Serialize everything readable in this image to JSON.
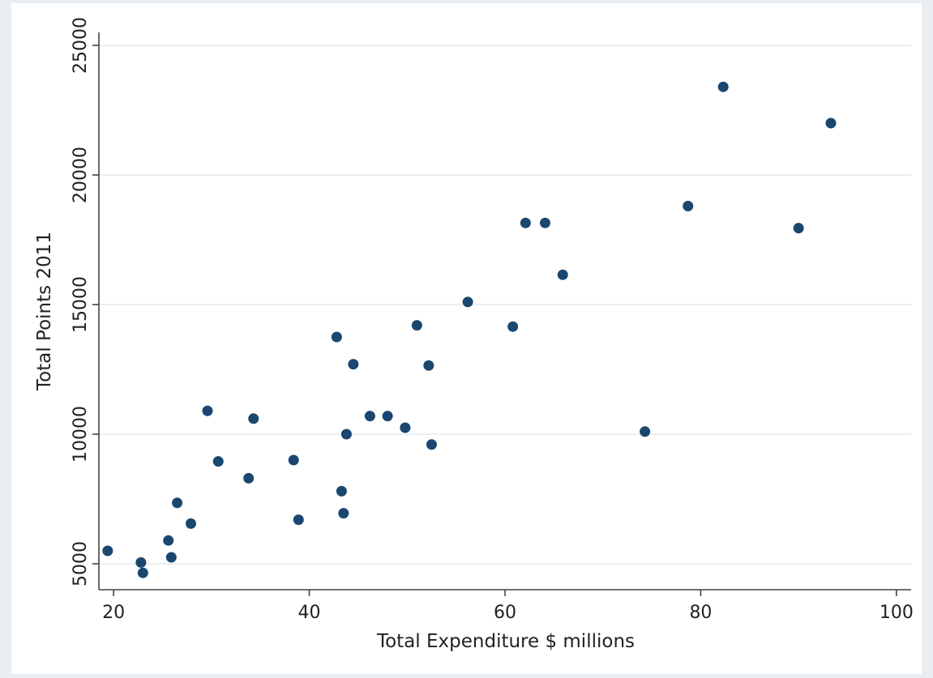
{
  "chart_data": {
    "type": "scatter",
    "title": "",
    "xlabel": "Total Expenditure $ millions",
    "ylabel": "Total Points 2011",
    "xlim": [
      18.5,
      101.5
    ],
    "ylim": [
      4000,
      25500
    ],
    "x_ticks": [
      20,
      40,
      60,
      80,
      100
    ],
    "y_ticks": [
      5000,
      10000,
      15000,
      20000,
      25000
    ],
    "x_tick_labels": [
      "20",
      "40",
      "60",
      "80",
      "100"
    ],
    "y_tick_labels": [
      "5000",
      "10000",
      "15000",
      "20000",
      "25000"
    ],
    "grid": "horizontal",
    "legend": "none",
    "colors": {
      "page": "#e8eef1",
      "plot": "#ffffff",
      "grid": "#e8eef1",
      "axis": "#444444",
      "marker": "#1a476f"
    },
    "points": [
      {
        "x": 19.4,
        "y": 5500
      },
      {
        "x": 22.8,
        "y": 5050
      },
      {
        "x": 23.0,
        "y": 4650
      },
      {
        "x": 25.6,
        "y": 5900
      },
      {
        "x": 25.9,
        "y": 5250
      },
      {
        "x": 26.5,
        "y": 7350
      },
      {
        "x": 27.9,
        "y": 6550
      },
      {
        "x": 29.6,
        "y": 10900
      },
      {
        "x": 30.7,
        "y": 8950
      },
      {
        "x": 33.8,
        "y": 8300
      },
      {
        "x": 34.3,
        "y": 10600
      },
      {
        "x": 38.4,
        "y": 9000
      },
      {
        "x": 38.9,
        "y": 6700
      },
      {
        "x": 42.8,
        "y": 13750
      },
      {
        "x": 43.3,
        "y": 7800
      },
      {
        "x": 43.5,
        "y": 6950
      },
      {
        "x": 43.8,
        "y": 10000
      },
      {
        "x": 44.5,
        "y": 12700
      },
      {
        "x": 46.2,
        "y": 10700
      },
      {
        "x": 48.0,
        "y": 10700
      },
      {
        "x": 49.8,
        "y": 10250
      },
      {
        "x": 51.0,
        "y": 14200
      },
      {
        "x": 52.2,
        "y": 12650
      },
      {
        "x": 52.5,
        "y": 9600
      },
      {
        "x": 56.2,
        "y": 15100
      },
      {
        "x": 60.8,
        "y": 14150
      },
      {
        "x": 62.1,
        "y": 18150
      },
      {
        "x": 64.1,
        "y": 18150
      },
      {
        "x": 65.9,
        "y": 16150
      },
      {
        "x": 74.3,
        "y": 10100
      },
      {
        "x": 78.7,
        "y": 18800
      },
      {
        "x": 82.3,
        "y": 23400
      },
      {
        "x": 90.0,
        "y": 17950
      },
      {
        "x": 93.3,
        "y": 22000
      }
    ]
  }
}
